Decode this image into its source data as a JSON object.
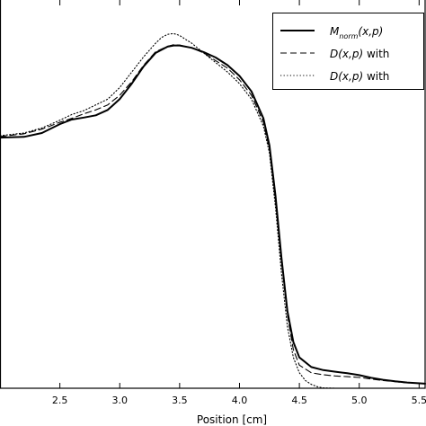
{
  "chart_data": {
    "type": "line",
    "title": "",
    "xlabel": "Position [cm]",
    "ylabel": "",
    "xlim": [
      2.0,
      5.55
    ],
    "ylim": [
      0.0,
      1.0
    ],
    "grid": false,
    "legend_position": "top-right",
    "xticks": [
      2.5,
      3.0,
      3.5,
      4.0,
      4.5,
      5.0,
      5.5
    ],
    "xtick_labels": [
      "2.5",
      "3.0",
      "3.5",
      "4.0",
      "4.5",
      "5.0",
      "5.5"
    ],
    "series": [
      {
        "name": "M_norm(x,p)",
        "legend_parts": [
          "M",
          "norm",
          "(x,p)",
          ""
        ],
        "style": "solid",
        "color": "#000000",
        "x": [
          2.0,
          2.2,
          2.35,
          2.5,
          2.6,
          2.7,
          2.8,
          2.9,
          3.0,
          3.1,
          3.2,
          3.3,
          3.4,
          3.45,
          3.5,
          3.6,
          3.7,
          3.8,
          3.9,
          4.0,
          4.1,
          4.2,
          4.25,
          4.3,
          4.35,
          4.4,
          4.45,
          4.5,
          4.6,
          4.7,
          4.8,
          4.9,
          5.0,
          5.1,
          5.2,
          5.3,
          5.4,
          5.55
        ],
        "y": [
          0.65,
          0.652,
          0.662,
          0.685,
          0.697,
          0.702,
          0.708,
          0.722,
          0.75,
          0.79,
          0.835,
          0.87,
          0.886,
          0.889,
          0.889,
          0.883,
          0.872,
          0.858,
          0.838,
          0.81,
          0.77,
          0.7,
          0.63,
          0.5,
          0.34,
          0.2,
          0.12,
          0.08,
          0.055,
          0.047,
          0.043,
          0.039,
          0.034,
          0.027,
          0.022,
          0.018,
          0.015,
          0.012
        ]
      },
      {
        "name": "D(x,p) with",
        "legend_parts": [
          "D(x,p)",
          "",
          "",
          " with"
        ],
        "style": "dashed",
        "color": "#000000",
        "x": [
          2.0,
          2.2,
          2.35,
          2.5,
          2.6,
          2.7,
          2.8,
          2.9,
          3.0,
          3.1,
          3.2,
          3.3,
          3.4,
          3.45,
          3.5,
          3.6,
          3.7,
          3.8,
          3.9,
          4.0,
          4.1,
          4.2,
          4.25,
          4.3,
          4.35,
          4.4,
          4.45,
          4.5,
          4.6,
          4.7,
          4.8,
          4.9,
          5.0,
          5.1,
          5.2,
          5.3,
          5.4,
          5.55
        ],
        "y": [
          0.653,
          0.66,
          0.672,
          0.69,
          0.7,
          0.712,
          0.722,
          0.735,
          0.76,
          0.795,
          0.838,
          0.873,
          0.887,
          0.891,
          0.89,
          0.883,
          0.87,
          0.85,
          0.83,
          0.8,
          0.76,
          0.69,
          0.62,
          0.49,
          0.33,
          0.19,
          0.1,
          0.06,
          0.04,
          0.035,
          0.032,
          0.03,
          0.028,
          0.024,
          0.02,
          0.017,
          0.014,
          0.012
        ]
      },
      {
        "name": "D(x,p) with",
        "legend_parts": [
          "D(x,p)",
          "",
          "",
          " with"
        ],
        "style": "dotted",
        "color": "#000000",
        "x": [
          2.0,
          2.2,
          2.35,
          2.5,
          2.6,
          2.7,
          2.8,
          2.9,
          3.0,
          3.1,
          3.2,
          3.3,
          3.35,
          3.4,
          3.45,
          3.5,
          3.55,
          3.6,
          3.7,
          3.8,
          3.9,
          4.0,
          4.1,
          4.2,
          4.25,
          4.3,
          4.35,
          4.4,
          4.45,
          4.5,
          4.55,
          4.6,
          4.65,
          4.7,
          4.8,
          5.0,
          5.2,
          5.55
        ],
        "y": [
          0.655,
          0.662,
          0.675,
          0.695,
          0.71,
          0.72,
          0.735,
          0.75,
          0.78,
          0.82,
          0.86,
          0.895,
          0.91,
          0.918,
          0.92,
          0.915,
          0.905,
          0.895,
          0.87,
          0.845,
          0.82,
          0.79,
          0.75,
          0.68,
          0.61,
          0.47,
          0.3,
          0.16,
          0.08,
          0.04,
          0.02,
          0.01,
          0.004,
          0.001,
          0.0,
          0.0,
          0.0,
          0.0
        ]
      }
    ]
  }
}
